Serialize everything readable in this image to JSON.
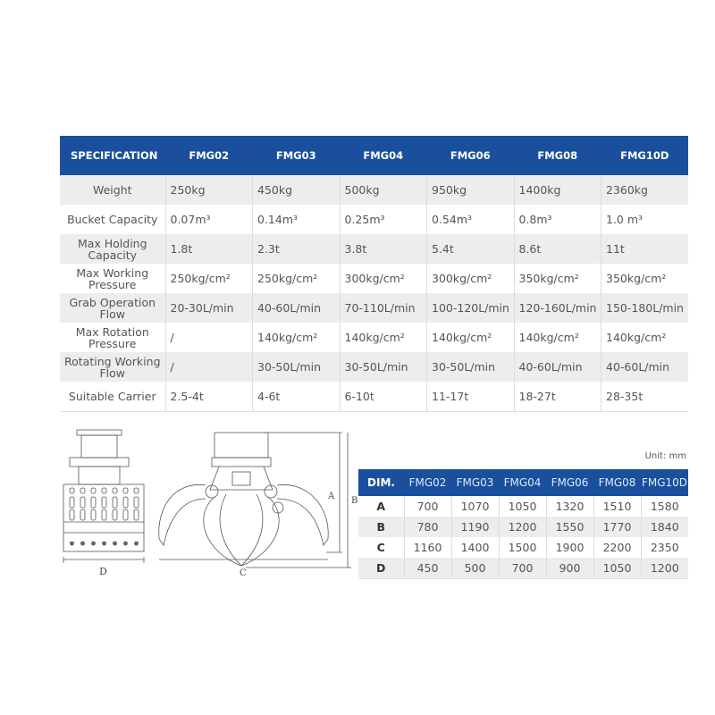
{
  "spec_table": {
    "headers": [
      "SPECIFICATION",
      "FMG02",
      "FMG03",
      "FMG04",
      "FMG06",
      "FMG08",
      "FMG10D"
    ],
    "rows": [
      {
        "label": "Weight",
        "values": [
          "250kg",
          "450kg",
          "500kg",
          "950kg",
          "1400kg",
          "2360kg"
        ]
      },
      {
        "label": "Bucket Capacity",
        "values": [
          "0.07m³",
          "0.14m³",
          "0.25m³",
          "0.54m³",
          "0.8m³",
          "1.0 m³"
        ]
      },
      {
        "label": "Max Holding Capacity",
        "values": [
          "1.8t",
          "2.3t",
          "3.8t",
          "5.4t",
          "8.6t",
          "11t"
        ]
      },
      {
        "label": "Max Working Pressure",
        "values": [
          "250kg/cm²",
          "250kg/cm²",
          "300kg/cm²",
          "300kg/cm²",
          "350kg/cm²",
          "350kg/cm²"
        ]
      },
      {
        "label": "Grab Operation Flow",
        "values": [
          "20-30L/min",
          "40-60L/min",
          "70-110L/min",
          "100-120L/min",
          "120-160L/min",
          "150-180L/min"
        ]
      },
      {
        "label": "Max Rotation Pressure",
        "values": [
          "/",
          "140kg/cm²",
          "140kg/cm²",
          "140kg/cm²",
          "140kg/cm²",
          "140kg/cm²"
        ]
      },
      {
        "label": "Rotating Working Flow",
        "values": [
          "/",
          "30-50L/min",
          "30-50L/min",
          "30-50L/min",
          "40-60L/min",
          "40-60L/min"
        ]
      },
      {
        "label": "Suitable Carrier",
        "values": [
          "2.5-4t",
          "4-6t",
          "6-10t",
          "11-17t",
          "18-27t",
          "28-35t"
        ]
      }
    ]
  },
  "dim_table": {
    "unit": "Unit: mm",
    "headers": [
      "DIM.",
      "FMG02",
      "FMG03",
      "FMG04",
      "FMG06",
      "FMG08",
      "FMG10D"
    ],
    "rows": [
      {
        "label": "A",
        "values": [
          "700",
          "1070",
          "1050",
          "1320",
          "1510",
          "1580"
        ]
      },
      {
        "label": "B",
        "values": [
          "780",
          "1190",
          "1200",
          "1550",
          "1770",
          "1840"
        ]
      },
      {
        "label": "C",
        "values": [
          "1160",
          "1400",
          "1500",
          "1900",
          "2200",
          "2350"
        ]
      },
      {
        "label": "D",
        "values": [
          "450",
          "500",
          "700",
          "900",
          "1050",
          "1200"
        ]
      }
    ]
  },
  "drawing_labels": {
    "a": "A",
    "b": "B",
    "c": "C",
    "d": "D"
  },
  "colors": {
    "header": "#1a4f9e",
    "stripe": "#ededed"
  }
}
